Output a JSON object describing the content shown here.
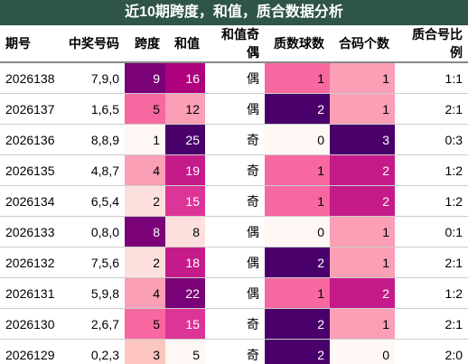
{
  "title": "近10期跨度，和值，质合数据分析",
  "table": {
    "header": [
      "期号",
      "中奖号码",
      "跨度",
      "和值",
      "和值奇偶",
      "质数球数",
      "合码个数",
      "质合号比例"
    ],
    "rows": [
      [
        "2026138",
        "7,9,0",
        "9",
        "16",
        "偶",
        "1",
        "1",
        "1:1"
      ],
      [
        "2026137",
        "1,6,5",
        "5",
        "12",
        "偶",
        "2",
        "1",
        "2:1"
      ],
      [
        "2026136",
        "8,8,9",
        "1",
        "25",
        "奇",
        "0",
        "3",
        "0:3"
      ],
      [
        "2026135",
        "4,8,7",
        "4",
        "19",
        "奇",
        "1",
        "2",
        "1:2"
      ],
      [
        "2026134",
        "6,5,4",
        "2",
        "15",
        "奇",
        "1",
        "2",
        "1:2"
      ],
      [
        "2026133",
        "0,8,0",
        "8",
        "8",
        "偶",
        "0",
        "1",
        "0:1"
      ],
      [
        "2026132",
        "7,5,6",
        "2",
        "18",
        "偶",
        "2",
        "1",
        "2:1"
      ],
      [
        "2026131",
        "5,9,8",
        "4",
        "22",
        "偶",
        "1",
        "2",
        "1:2"
      ],
      [
        "2026130",
        "2,6,7",
        "5",
        "15",
        "奇",
        "2",
        "1",
        "2:1"
      ],
      [
        "2026129",
        "0,2,3",
        "3",
        "5",
        "奇",
        "2",
        "0",
        "2:0"
      ]
    ],
    "cell_colors": [
      [
        null,
        null,
        "#7a0177",
        "#ae017e",
        null,
        "#f768a1",
        "#fa9fb5",
        null
      ],
      [
        null,
        null,
        "#f768a1",
        "#fa9fb5",
        null,
        "#49006a",
        "#fa9fb5",
        null
      ],
      [
        null,
        null,
        "#fff7f3",
        "#49006a",
        null,
        "#fff7f3",
        "#49006a",
        null
      ],
      [
        null,
        null,
        "#fa9fb5",
        "#c51b8a",
        null,
        "#f768a1",
        "#c51b8a",
        null
      ],
      [
        null,
        null,
        "#fde0dd",
        "#dd3497",
        null,
        "#f768a1",
        "#c51b8a",
        null
      ],
      [
        null,
        null,
        "#7a0177",
        "#fde0dd",
        null,
        "#fff7f3",
        "#fa9fb5",
        null
      ],
      [
        null,
        null,
        "#fde0dd",
        "#c51b8a",
        null,
        "#49006a",
        "#fa9fb5",
        null
      ],
      [
        null,
        null,
        "#fa9fb5",
        "#7a0177",
        null,
        "#f768a1",
        "#c51b8a",
        null
      ],
      [
        null,
        null,
        "#f768a1",
        "#dd3497",
        null,
        "#49006a",
        "#fa9fb5",
        null
      ],
      [
        null,
        null,
        "#fcc5c0",
        "#fff7f3",
        null,
        "#49006a",
        "#fff7f3",
        null
      ]
    ]
  }
}
